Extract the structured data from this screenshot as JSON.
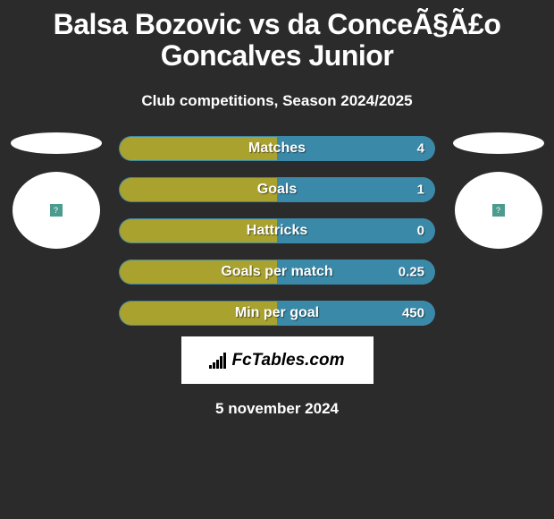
{
  "title": "Balsa Bozovic vs da ConceÃ§Ã£o Goncalves Junior",
  "subtitle": "Club competitions, Season 2024/2025",
  "date": "5 november 2024",
  "brand": "FcTables.com",
  "colors": {
    "background": "#2b2b2b",
    "player1_fill": "#aaa22f",
    "player2_fill": "#3b89a8",
    "white": "#ffffff",
    "avatar_badge": "#4b9b8f",
    "text_shadow": "rgba(0,0,0,0.5)"
  },
  "avatar_symbol": "?",
  "stats": [
    {
      "label": "Matches",
      "left_value": "",
      "right_value": "4",
      "left_pct": 50,
      "right_pct": 50
    },
    {
      "label": "Goals",
      "left_value": "",
      "right_value": "1",
      "left_pct": 50,
      "right_pct": 50
    },
    {
      "label": "Hattricks",
      "left_value": "",
      "right_value": "0",
      "left_pct": 50,
      "right_pct": 50
    },
    {
      "label": "Goals per match",
      "left_value": "",
      "right_value": "0.25",
      "left_pct": 50,
      "right_pct": 50
    },
    {
      "label": "Min per goal",
      "left_value": "",
      "right_value": "450",
      "left_pct": 50,
      "right_pct": 50
    }
  ],
  "brand_bars": [
    4,
    7,
    10,
    14,
    18
  ]
}
